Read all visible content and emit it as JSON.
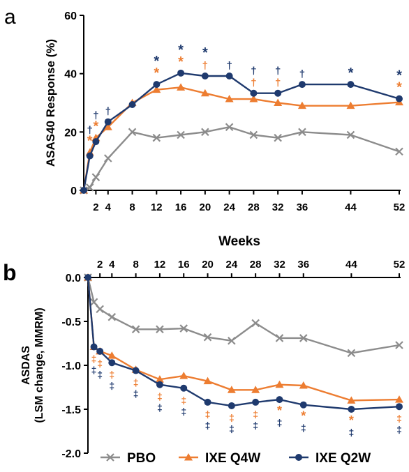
{
  "colors": {
    "pbo": "#8c8c8c",
    "q4w": "#ed7d31",
    "q2w": "#1f3a6e",
    "axis": "#000000"
  },
  "legend": [
    {
      "name": "PBO",
      "color": "#8c8c8c",
      "marker": "cross"
    },
    {
      "name": "IXE Q4W",
      "color": "#ed7d31",
      "marker": "triangle"
    },
    {
      "name": "IXE Q2W",
      "color": "#1f3a6e",
      "marker": "circle"
    }
  ],
  "chart_data": [
    {
      "panel_label": "a",
      "type": "line",
      "xlabel": "Weeks",
      "ylabel": "ASAS40 Response (%)",
      "ylim": [
        0,
        60
      ],
      "yticks": [
        0,
        20,
        40,
        60
      ],
      "xticks": [
        2,
        4,
        8,
        12,
        16,
        20,
        24,
        28,
        32,
        36,
        44,
        52
      ],
      "series": [
        {
          "name": "PBO",
          "color": "#8c8c8c",
          "marker": "cross",
          "x": [
            0,
            1,
            2,
            4,
            8,
            12,
            16,
            20,
            24,
            28,
            32,
            36,
            44,
            52
          ],
          "y": [
            0,
            1,
            4.5,
            11,
            20,
            18,
            19,
            20,
            21.7,
            19,
            18,
            20,
            19,
            13.3
          ]
        },
        {
          "name": "IXE Q4W",
          "color": "#ed7d31",
          "marker": "triangle",
          "x": [
            0,
            1,
            2,
            4,
            8,
            12,
            16,
            20,
            24,
            28,
            32,
            36,
            44,
            52
          ],
          "y": [
            0,
            13,
            18,
            21.7,
            30,
            34.5,
            35.3,
            33.3,
            31.3,
            31.3,
            30,
            29,
            29,
            30.2
          ]
        },
        {
          "name": "IXE Q2W",
          "color": "#1f3a6e",
          "marker": "circle",
          "x": [
            0,
            1,
            2,
            4,
            8,
            12,
            16,
            20,
            24,
            28,
            32,
            36,
            44,
            52
          ],
          "y": [
            0,
            11.8,
            16.7,
            23.5,
            29.4,
            36.3,
            40.2,
            39.2,
            39.2,
            33.3,
            33.3,
            36.3,
            36.3,
            31.4
          ]
        }
      ],
      "annotations": [
        {
          "x": 1,
          "rows": [
            {
              "symbol": "†",
              "series": "IXE Q2W"
            },
            {
              "symbol": "*",
              "series": "IXE Q4W"
            }
          ]
        },
        {
          "x": 2,
          "rows": [
            {
              "symbol": "†",
              "series": "IXE Q2W"
            },
            {
              "symbol": "*",
              "series": "IXE Q4W"
            }
          ]
        },
        {
          "x": 4,
          "rows": [
            {
              "symbol": "†",
              "series": "IXE Q2W"
            }
          ]
        },
        {
          "x": 12,
          "rows": [
            {
              "symbol": "*",
              "series": "IXE Q2W"
            },
            {
              "symbol": "*",
              "series": "IXE Q4W"
            }
          ]
        },
        {
          "x": 16,
          "rows": [
            {
              "symbol": "*",
              "series": "IXE Q2W"
            },
            {
              "symbol": "*",
              "series": "IXE Q4W"
            }
          ]
        },
        {
          "x": 20,
          "rows": [
            {
              "symbol": "*",
              "series": "IXE Q2W"
            },
            {
              "symbol": "†",
              "series": "IXE Q4W"
            }
          ]
        },
        {
          "x": 24,
          "rows": [
            {
              "symbol": "†",
              "series": "IXE Q2W"
            }
          ]
        },
        {
          "x": 28,
          "rows": [
            {
              "symbol": "†",
              "series": "IXE Q2W"
            },
            {
              "symbol": "†",
              "series": "IXE Q4W"
            }
          ]
        },
        {
          "x": 32,
          "rows": [
            {
              "symbol": "†",
              "series": "IXE Q2W"
            },
            {
              "symbol": "†",
              "series": "IXE Q4W"
            }
          ]
        },
        {
          "x": 36,
          "rows": [
            {
              "symbol": "†",
              "series": "IXE Q2W"
            }
          ]
        },
        {
          "x": 44,
          "rows": [
            {
              "symbol": "*",
              "series": "IXE Q2W"
            }
          ]
        },
        {
          "x": 52,
          "rows": [
            {
              "symbol": "*",
              "series": "IXE Q2W"
            },
            {
              "symbol": "*",
              "series": "IXE Q4W"
            }
          ]
        }
      ]
    },
    {
      "panel_label": "b",
      "type": "line",
      "xlabel": "",
      "ylabel": "ASDAS (LSM change, MMRM)",
      "ylim": [
        -2.0,
        0.0
      ],
      "yticks": [
        0.0,
        -0.5,
        -1.0,
        -1.5,
        -2.0
      ],
      "xticks": [
        2,
        4,
        8,
        12,
        16,
        20,
        24,
        28,
        32,
        36,
        44,
        52
      ],
      "series": [
        {
          "name": "PBO",
          "color": "#8c8c8c",
          "marker": "cross",
          "x": [
            0,
            1,
            2,
            4,
            8,
            12,
            16,
            20,
            24,
            28,
            32,
            36,
            44,
            52
          ],
          "y": [
            0,
            -0.28,
            -0.36,
            -0.45,
            -0.59,
            -0.59,
            -0.58,
            -0.68,
            -0.72,
            -0.52,
            -0.69,
            -0.69,
            -0.86,
            -0.77
          ]
        },
        {
          "name": "IXE Q4W",
          "color": "#ed7d31",
          "marker": "triangle",
          "x": [
            0,
            1,
            2,
            4,
            8,
            12,
            16,
            20,
            24,
            28,
            32,
            36,
            44,
            52
          ],
          "y": [
            0,
            -0.79,
            -0.84,
            -0.89,
            -1.05,
            -1.16,
            -1.12,
            -1.18,
            -1.28,
            -1.28,
            -1.22,
            -1.23,
            -1.4,
            -1.39
          ]
        },
        {
          "name": "IXE Q2W",
          "color": "#1f3a6e",
          "marker": "circle",
          "x": [
            0,
            1,
            2,
            4,
            8,
            12,
            16,
            20,
            24,
            28,
            32,
            36,
            44,
            52
          ],
          "y": [
            0,
            -0.79,
            -0.84,
            -0.97,
            -1.06,
            -1.22,
            -1.26,
            -1.42,
            -1.46,
            -1.42,
            -1.39,
            -1.45,
            -1.5,
            -1.47
          ]
        }
      ],
      "annotations": [
        {
          "x": 1,
          "rows": [
            {
              "symbol": "‡",
              "series": "IXE Q4W"
            },
            {
              "symbol": "‡",
              "series": "IXE Q2W"
            }
          ]
        },
        {
          "x": 2,
          "rows": [
            {
              "symbol": "‡",
              "series": "IXE Q4W"
            },
            {
              "symbol": "‡",
              "series": "IXE Q2W"
            }
          ]
        },
        {
          "x": 4,
          "rows": [
            {
              "symbol": "‡",
              "series": "IXE Q4W"
            },
            {
              "symbol": "‡",
              "series": "IXE Q2W"
            }
          ]
        },
        {
          "x": 8,
          "rows": [
            {
              "symbol": "‡",
              "series": "IXE Q4W"
            },
            {
              "symbol": "‡",
              "series": "IXE Q2W"
            }
          ]
        },
        {
          "x": 12,
          "rows": [
            {
              "symbol": "‡",
              "series": "IXE Q4W"
            },
            {
              "symbol": "‡",
              "series": "IXE Q2W"
            }
          ]
        },
        {
          "x": 16,
          "rows": [
            {
              "symbol": "‡",
              "series": "IXE Q4W"
            },
            {
              "symbol": "‡",
              "series": "IXE Q2W"
            }
          ]
        },
        {
          "x": 20,
          "rows": [
            {
              "symbol": "‡",
              "series": "IXE Q4W"
            },
            {
              "symbol": "‡",
              "series": "IXE Q2W"
            }
          ]
        },
        {
          "x": 24,
          "rows": [
            {
              "symbol": "‡",
              "series": "IXE Q4W"
            },
            {
              "symbol": "‡",
              "series": "IXE Q2W"
            }
          ]
        },
        {
          "x": 28,
          "rows": [
            {
              "symbol": "‡",
              "series": "IXE Q4W"
            },
            {
              "symbol": "‡",
              "series": "IXE Q2W"
            }
          ]
        },
        {
          "x": 32,
          "rows": [
            {
              "symbol": "*",
              "series": "IXE Q4W"
            },
            {
              "symbol": "‡",
              "series": "IXE Q2W"
            }
          ]
        },
        {
          "x": 36,
          "rows": [
            {
              "symbol": "*",
              "series": "IXE Q4W"
            },
            {
              "symbol": "‡",
              "series": "IXE Q2W"
            }
          ]
        },
        {
          "x": 44,
          "rows": [
            {
              "symbol": "*",
              "series": "IXE Q4W"
            },
            {
              "symbol": "‡",
              "series": "IXE Q2W"
            }
          ]
        },
        {
          "x": 52,
          "rows": [
            {
              "symbol": "‡",
              "series": "IXE Q4W"
            },
            {
              "symbol": "‡",
              "series": "IXE Q2W"
            }
          ]
        }
      ]
    }
  ]
}
